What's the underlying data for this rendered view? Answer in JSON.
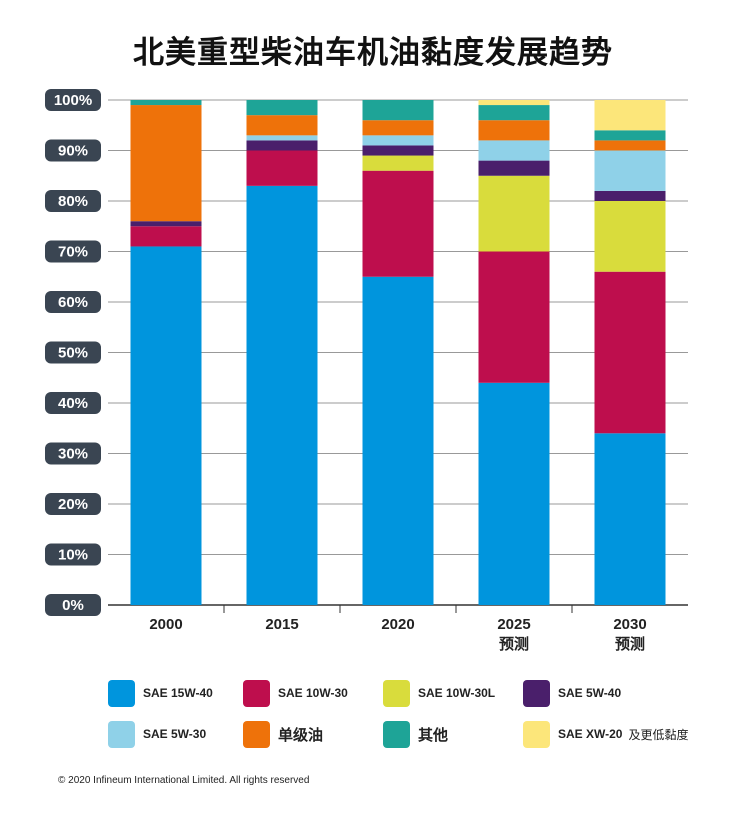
{
  "title": "北美重型柴油车机油黏度发展趋势",
  "copyright": "© 2020 Infineum International Limited. All rights reserved",
  "chart_data": {
    "type": "bar",
    "stacked": true,
    "title": "北美重型柴油车机油黏度发展趋势",
    "categories": [
      "2000",
      "2015",
      "2020",
      "2025",
      "2030"
    ],
    "category_sublabels": [
      "",
      "",
      "",
      "预测",
      "预测"
    ],
    "y_ticks": [
      "0%",
      "10%",
      "20%",
      "30%",
      "40%",
      "50%",
      "60%",
      "70%",
      "80%",
      "90%",
      "100%"
    ],
    "ylim": [
      0,
      100
    ],
    "grid": true,
    "legend_position": "bottom",
    "series": [
      {
        "name": "SAE 15W-40",
        "color": "#0095dd",
        "values": [
          71,
          83,
          65,
          44,
          34
        ]
      },
      {
        "name": "SAE 10W-30",
        "color": "#be0e4d",
        "values": [
          4,
          7,
          21,
          26,
          32
        ]
      },
      {
        "name": "SAE 10W-30L",
        "color": "#d9dc3c",
        "values": [
          0,
          0,
          3,
          15,
          14
        ]
      },
      {
        "name": "SAE 5W-40",
        "color": "#4a1f6b",
        "values": [
          1,
          2,
          2,
          3,
          2
        ]
      },
      {
        "name": "SAE 5W-30",
        "color": "#8fd1e8",
        "values": [
          0,
          1,
          2,
          4,
          8
        ]
      },
      {
        "name": "单级油",
        "color": "#ee720a",
        "values": [
          23,
          4,
          3,
          4,
          2
        ]
      },
      {
        "name": "其他",
        "color": "#1ea497",
        "values": [
          1,
          3,
          4,
          3,
          2
        ]
      },
      {
        "name": "SAE XW-20",
        "color": "#fce67a",
        "values": [
          0,
          0,
          0,
          1,
          6
        ]
      }
    ]
  },
  "legend": [
    {
      "label": "SAE 15W-40",
      "color": "#0095dd"
    },
    {
      "label": "SAE 10W-30",
      "color": "#be0e4d"
    },
    {
      "label": "SAE 10W-30L",
      "color": "#d9dc3c"
    },
    {
      "label": "SAE 5W-40",
      "color": "#4a1f6b"
    },
    {
      "label": "SAE 5W-30",
      "color": "#8fd1e8"
    },
    {
      "label": "单级油",
      "color": "#ee720a"
    },
    {
      "label": "其他",
      "color": "#1ea497"
    },
    {
      "label": "SAE XW-20",
      "note": "及更低黏度",
      "color": "#fce67a"
    }
  ]
}
